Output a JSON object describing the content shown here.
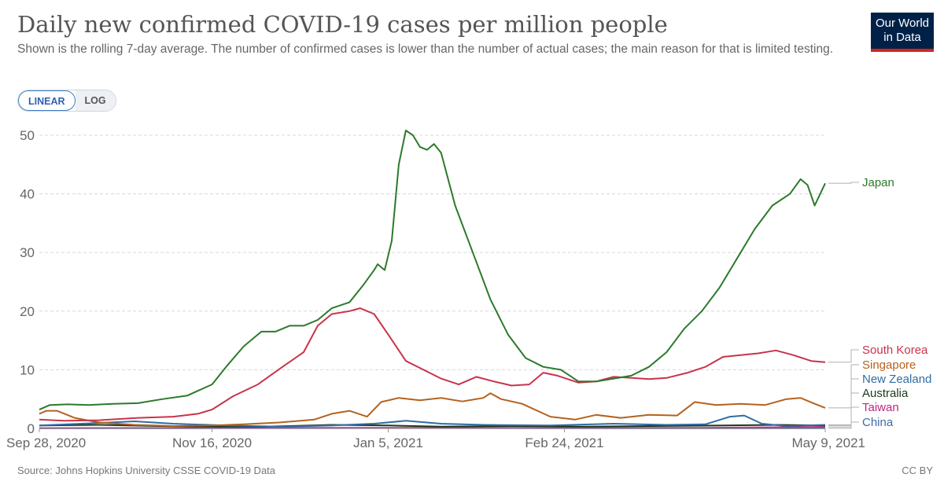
{
  "header": {
    "title": "Daily new confirmed COVID-19 cases per million people",
    "subtitle": "Shown is the rolling 7-day average. The number of confirmed cases is lower than the number of actual cases; the main reason for that is limited testing.",
    "logo_line1": "Our World",
    "logo_line2": "in Data"
  },
  "controls": {
    "linear_label": "LINEAR",
    "log_label": "LOG",
    "selected": "LINEAR"
  },
  "footer": {
    "source": "Source: Johns Hopkins University CSSE COVID-19 Data",
    "license": "CC BY"
  },
  "chart_data": {
    "type": "line",
    "x_start": "2020-09-28",
    "x_end": "2021-05-09",
    "ylim": [
      0,
      52
    ],
    "y_ticks": [
      0,
      10,
      20,
      30,
      40,
      50
    ],
    "x_ticks": [
      {
        "date": "2020-09-28",
        "label": "Sep 28, 2020"
      },
      {
        "date": "2020-11-16",
        "label": "Nov 16, 2020"
      },
      {
        "date": "2021-01-05",
        "label": "Jan 5, 2021"
      },
      {
        "date": "2021-02-24",
        "label": "Feb 24, 2021"
      },
      {
        "date": "2021-05-09",
        "label": "May 9, 2021"
      }
    ],
    "grid": true,
    "legend": "right, end-of-line labels",
    "series": [
      {
        "name": "Japan",
        "color": "#2c7a2c",
        "points": [
          [
            "2020-09-28",
            3.2
          ],
          [
            "2020-10-01",
            4.0
          ],
          [
            "2020-10-06",
            4.1
          ],
          [
            "2020-10-12",
            4.0
          ],
          [
            "2020-10-19",
            4.2
          ],
          [
            "2020-10-26",
            4.3
          ],
          [
            "2020-11-02",
            5.0
          ],
          [
            "2020-11-09",
            5.6
          ],
          [
            "2020-11-16",
            7.5
          ],
          [
            "2020-11-20",
            10.5
          ],
          [
            "2020-11-25",
            14.0
          ],
          [
            "2020-11-30",
            16.5
          ],
          [
            "2020-12-04",
            16.5
          ],
          [
            "2020-12-08",
            17.5
          ],
          [
            "2020-12-12",
            17.5
          ],
          [
            "2020-12-16",
            18.5
          ],
          [
            "2020-12-20",
            20.5
          ],
          [
            "2020-12-25",
            21.5
          ],
          [
            "2020-12-29",
            24.5
          ],
          [
            "2021-01-01",
            27.0
          ],
          [
            "2021-01-02",
            28.0
          ],
          [
            "2021-01-04",
            27.0
          ],
          [
            "2021-01-06",
            32.0
          ],
          [
            "2021-01-08",
            45.0
          ],
          [
            "2021-01-10",
            50.8
          ],
          [
            "2021-01-12",
            50.0
          ],
          [
            "2021-01-14",
            48.0
          ],
          [
            "2021-01-16",
            47.5
          ],
          [
            "2021-01-18",
            48.5
          ],
          [
            "2021-01-20",
            47.0
          ],
          [
            "2021-01-24",
            38.0
          ],
          [
            "2021-01-29",
            30.0
          ],
          [
            "2021-02-03",
            22.0
          ],
          [
            "2021-02-08",
            16.0
          ],
          [
            "2021-02-13",
            12.0
          ],
          [
            "2021-02-18",
            10.5
          ],
          [
            "2021-02-23",
            10.0
          ],
          [
            "2021-02-28",
            8.0
          ],
          [
            "2021-03-05",
            8.0
          ],
          [
            "2021-03-10",
            8.5
          ],
          [
            "2021-03-15",
            9.0
          ],
          [
            "2021-03-20",
            10.5
          ],
          [
            "2021-03-25",
            13.0
          ],
          [
            "2021-03-30",
            17.0
          ],
          [
            "2021-04-04",
            20.0
          ],
          [
            "2021-04-09",
            24.0
          ],
          [
            "2021-04-14",
            29.0
          ],
          [
            "2021-04-19",
            34.0
          ],
          [
            "2021-04-24",
            38.0
          ],
          [
            "2021-04-29",
            40.0
          ],
          [
            "2021-05-02",
            42.5
          ],
          [
            "2021-05-04",
            41.5
          ],
          [
            "2021-05-06",
            38.0
          ],
          [
            "2021-05-09",
            41.8
          ]
        ]
      },
      {
        "name": "South Korea",
        "color": "#c8344b",
        "points": [
          [
            "2020-09-28",
            1.5
          ],
          [
            "2020-10-05",
            1.3
          ],
          [
            "2020-10-15",
            1.4
          ],
          [
            "2020-10-26",
            1.8
          ],
          [
            "2020-11-05",
            2.0
          ],
          [
            "2020-11-12",
            2.5
          ],
          [
            "2020-11-16",
            3.2
          ],
          [
            "2020-11-22",
            5.5
          ],
          [
            "2020-11-29",
            7.5
          ],
          [
            "2020-12-06",
            10.5
          ],
          [
            "2020-12-12",
            13.0
          ],
          [
            "2020-12-16",
            17.5
          ],
          [
            "2020-12-20",
            19.5
          ],
          [
            "2020-12-25",
            20.0
          ],
          [
            "2020-12-28",
            20.5
          ],
          [
            "2021-01-01",
            19.5
          ],
          [
            "2021-01-05",
            16.0
          ],
          [
            "2021-01-10",
            11.5
          ],
          [
            "2021-01-15",
            10.0
          ],
          [
            "2021-01-20",
            8.5
          ],
          [
            "2021-01-25",
            7.5
          ],
          [
            "2021-01-30",
            8.8
          ],
          [
            "2021-02-04",
            8.0
          ],
          [
            "2021-02-09",
            7.3
          ],
          [
            "2021-02-14",
            7.5
          ],
          [
            "2021-02-18",
            9.5
          ],
          [
            "2021-02-22",
            9.0
          ],
          [
            "2021-02-28",
            7.8
          ],
          [
            "2021-03-05",
            8.0
          ],
          [
            "2021-03-10",
            8.8
          ],
          [
            "2021-03-15",
            8.6
          ],
          [
            "2021-03-20",
            8.4
          ],
          [
            "2021-03-25",
            8.6
          ],
          [
            "2021-03-31",
            9.5
          ],
          [
            "2021-04-05",
            10.5
          ],
          [
            "2021-04-10",
            12.2
          ],
          [
            "2021-04-15",
            12.5
          ],
          [
            "2021-04-20",
            12.8
          ],
          [
            "2021-04-25",
            13.3
          ],
          [
            "2021-04-30",
            12.5
          ],
          [
            "2021-05-05",
            11.5
          ],
          [
            "2021-05-09",
            11.3
          ]
        ]
      },
      {
        "name": "Singapore",
        "color": "#b4621e",
        "points": [
          [
            "2020-09-28",
            2.5
          ],
          [
            "2020-09-30",
            3.0
          ],
          [
            "2020-10-03",
            3.0
          ],
          [
            "2020-10-08",
            1.8
          ],
          [
            "2020-10-15",
            1.0
          ],
          [
            "2020-10-25",
            0.6
          ],
          [
            "2020-11-05",
            0.4
          ],
          [
            "2020-11-16",
            0.5
          ],
          [
            "2020-11-25",
            0.7
          ],
          [
            "2020-12-05",
            1.0
          ],
          [
            "2020-12-15",
            1.5
          ],
          [
            "2020-12-20",
            2.5
          ],
          [
            "2020-12-25",
            3.0
          ],
          [
            "2020-12-30",
            2.0
          ],
          [
            "2021-01-03",
            4.5
          ],
          [
            "2021-01-08",
            5.2
          ],
          [
            "2021-01-14",
            4.8
          ],
          [
            "2021-01-20",
            5.2
          ],
          [
            "2021-01-26",
            4.6
          ],
          [
            "2021-02-01",
            5.2
          ],
          [
            "2021-02-03",
            6.0
          ],
          [
            "2021-02-06",
            5.0
          ],
          [
            "2021-02-12",
            4.2
          ],
          [
            "2021-02-20",
            2.0
          ],
          [
            "2021-02-27",
            1.5
          ],
          [
            "2021-03-05",
            2.3
          ],
          [
            "2021-03-12",
            1.8
          ],
          [
            "2021-03-20",
            2.3
          ],
          [
            "2021-03-28",
            2.2
          ],
          [
            "2021-04-02",
            4.5
          ],
          [
            "2021-04-08",
            4.0
          ],
          [
            "2021-04-15",
            4.2
          ],
          [
            "2021-04-22",
            4.0
          ],
          [
            "2021-04-28",
            5.0
          ],
          [
            "2021-05-02",
            5.2
          ],
          [
            "2021-05-06",
            4.2
          ],
          [
            "2021-05-09",
            3.5
          ]
        ]
      },
      {
        "name": "New Zealand",
        "color": "#2f6da3",
        "points": [
          [
            "2020-09-28",
            0.5
          ],
          [
            "2020-10-10",
            0.8
          ],
          [
            "2020-10-25",
            1.2
          ],
          [
            "2020-11-05",
            0.8
          ],
          [
            "2020-11-20",
            0.5
          ],
          [
            "2020-12-05",
            0.3
          ],
          [
            "2020-12-20",
            0.5
          ],
          [
            "2021-01-01",
            0.8
          ],
          [
            "2021-01-10",
            1.3
          ],
          [
            "2021-01-20",
            0.8
          ],
          [
            "2021-02-01",
            0.6
          ],
          [
            "2021-02-20",
            0.5
          ],
          [
            "2021-03-10",
            0.8
          ],
          [
            "2021-03-25",
            0.6
          ],
          [
            "2021-04-05",
            0.7
          ],
          [
            "2021-04-12",
            2.0
          ],
          [
            "2021-04-16",
            2.2
          ],
          [
            "2021-04-21",
            0.8
          ],
          [
            "2021-04-28",
            0.4
          ],
          [
            "2021-05-09",
            0.6
          ]
        ]
      },
      {
        "name": "Australia",
        "color": "#1a3a1a",
        "points": [
          [
            "2020-09-28",
            0.5
          ],
          [
            "2020-10-15",
            0.6
          ],
          [
            "2020-11-01",
            0.4
          ],
          [
            "2020-11-16",
            0.3
          ],
          [
            "2020-12-01",
            0.3
          ],
          [
            "2020-12-20",
            0.6
          ],
          [
            "2021-01-05",
            0.5
          ],
          [
            "2021-01-20",
            0.3
          ],
          [
            "2021-02-10",
            0.4
          ],
          [
            "2021-03-01",
            0.3
          ],
          [
            "2021-03-20",
            0.4
          ],
          [
            "2021-04-10",
            0.5
          ],
          [
            "2021-04-25",
            0.6
          ],
          [
            "2021-05-09",
            0.5
          ]
        ]
      },
      {
        "name": "Taiwan",
        "color": "#c0277f",
        "points": [
          [
            "2020-09-28",
            0.05
          ],
          [
            "2020-12-01",
            0.1
          ],
          [
            "2021-02-01",
            0.1
          ],
          [
            "2021-04-01",
            0.1
          ],
          [
            "2021-05-09",
            0.25
          ]
        ]
      },
      {
        "name": "China",
        "color": "#3b6ea8",
        "points": [
          [
            "2020-09-28",
            0.02
          ],
          [
            "2020-12-01",
            0.03
          ],
          [
            "2021-01-15",
            0.06
          ],
          [
            "2021-03-01",
            0.02
          ],
          [
            "2021-05-09",
            0.02
          ]
        ]
      }
    ]
  }
}
